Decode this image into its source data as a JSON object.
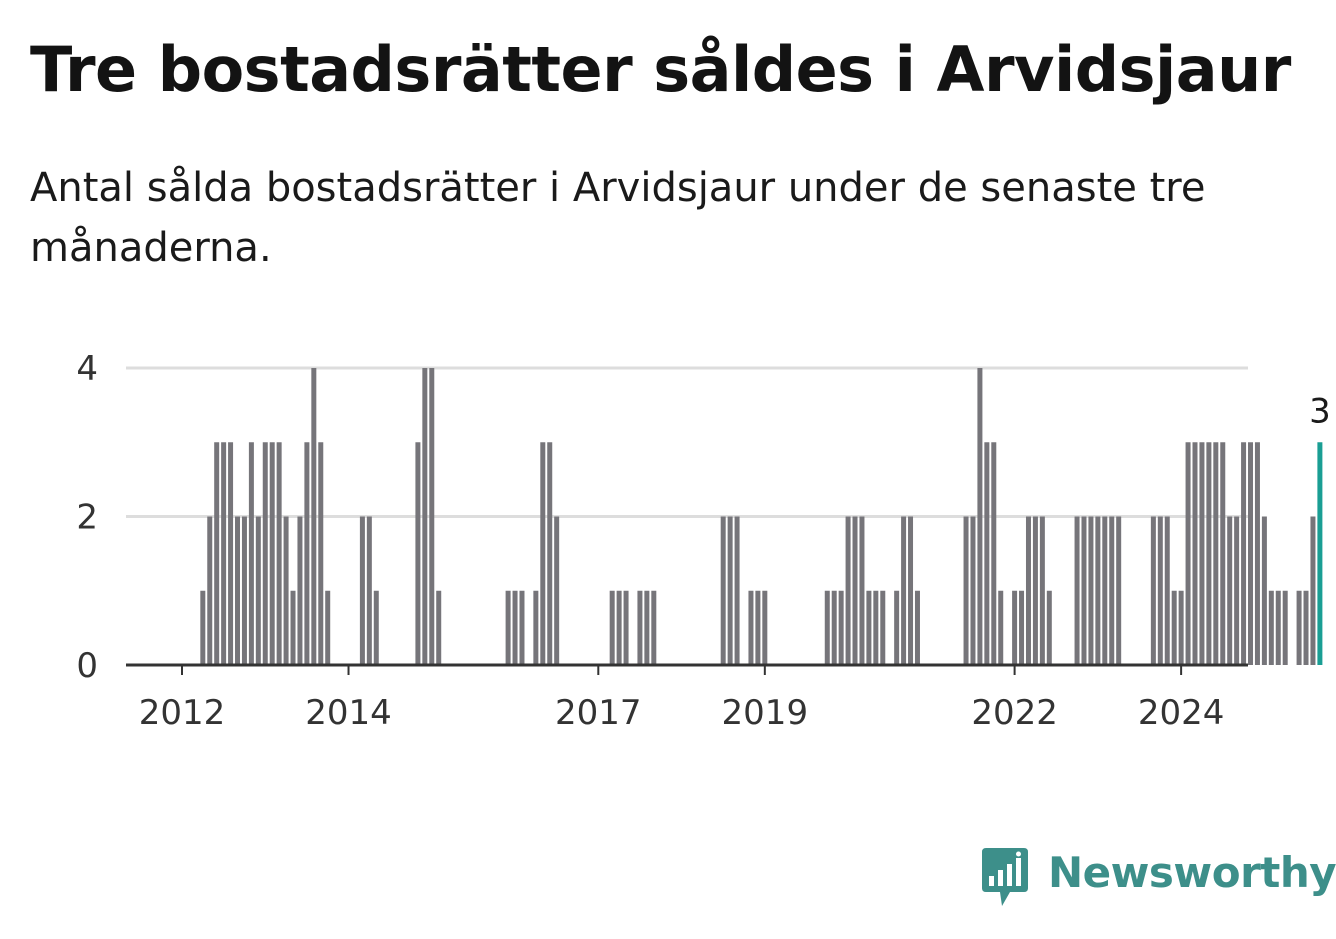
{
  "title": "Tre bostadsrätter såldes i Arvidsjaur",
  "subtitle": "Antal sålda bostadsrätter i Arvidsjaur under de senaste tre månaderna.",
  "brand": "Newsworthy",
  "colors": {
    "bar": "#76757a",
    "highlight": "#1a9e94",
    "grid": "#dddddd",
    "axis": "#333333",
    "brand": "#3d8f8a"
  },
  "chart_data": {
    "type": "bar",
    "title": "Tre bostadsrätter såldes i Arvidsjaur",
    "xlabel": "",
    "ylabel": "",
    "ylim": [
      0,
      4
    ],
    "yticks": [
      0,
      2,
      4
    ],
    "x_start": {
      "year": 2011,
      "month": 4
    },
    "x_tick_years": [
      "2012",
      "2014",
      "2017",
      "2019",
      "2022",
      "2024"
    ],
    "grid": true,
    "values": [
      0,
      0,
      0,
      0,
      0,
      0,
      0,
      0,
      0,
      0,
      0,
      0,
      1,
      2,
      3,
      3,
      3,
      2,
      2,
      3,
      2,
      3,
      3,
      3,
      2,
      1,
      2,
      3,
      4,
      3,
      1,
      0,
      0,
      0,
      0,
      2,
      2,
      1,
      0,
      0,
      0,
      0,
      0,
      3,
      4,
      4,
      1,
      0,
      0,
      0,
      0,
      0,
      0,
      0,
      0,
      0,
      1,
      1,
      1,
      0,
      1,
      3,
      3,
      2,
      0,
      0,
      0,
      0,
      0,
      0,
      0,
      1,
      1,
      1,
      0,
      1,
      1,
      1,
      0,
      0,
      0,
      0,
      0,
      0,
      0,
      0,
      0,
      2,
      2,
      2,
      0,
      1,
      1,
      1,
      0,
      0,
      0,
      0,
      0,
      0,
      0,
      0,
      1,
      1,
      1,
      2,
      2,
      2,
      1,
      1,
      1,
      0,
      1,
      2,
      2,
      1,
      0,
      0,
      0,
      0,
      0,
      0,
      2,
      2,
      4,
      3,
      3,
      1,
      0,
      1,
      1,
      2,
      2,
      2,
      1,
      0,
      0,
      0,
      2,
      2,
      2,
      2,
      2,
      2,
      2,
      0,
      0,
      0,
      0,
      2,
      2,
      2,
      1,
      1,
      3,
      3,
      3,
      3,
      3,
      3,
      2,
      2,
      3,
      3,
      3,
      2,
      1,
      1,
      1,
      0,
      1,
      1,
      2,
      3
    ],
    "highlight_label": "3"
  }
}
